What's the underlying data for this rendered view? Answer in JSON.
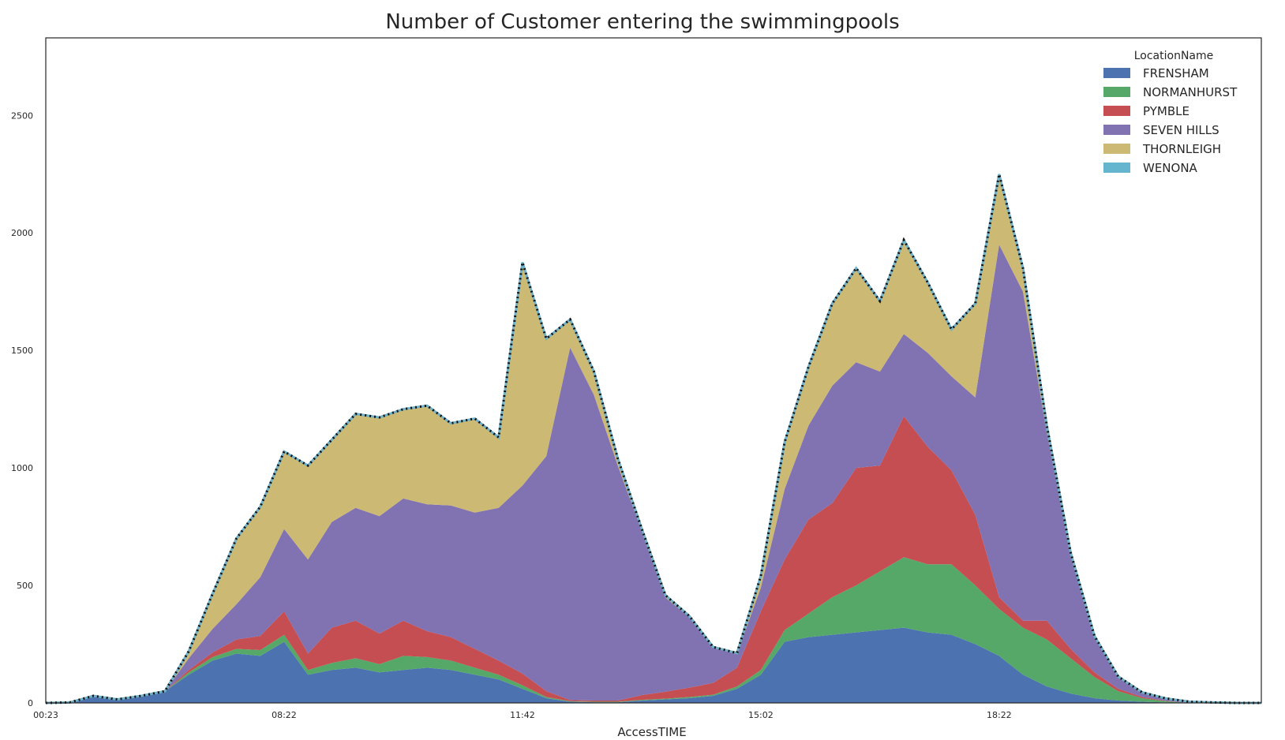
{
  "chart_data": {
    "type": "area",
    "stacked": true,
    "title": "Number of Customer entering the swimmingpools",
    "xlabel": "AccessTIME",
    "ylabel": "",
    "ylim": [
      0,
      2830
    ],
    "yticks": [
      0,
      500,
      1000,
      1500,
      2000,
      2500
    ],
    "xticks": [
      "00:23",
      "08:22",
      "11:42",
      "15:02",
      "18:22"
    ],
    "grid": false,
    "total_line": {
      "style": "dotted",
      "colors": [
        "#6fb1c8",
        "#111111"
      ]
    },
    "legend": {
      "title": "LocationName",
      "placement": "top-right"
    },
    "x": [
      "00:23",
      "01:00",
      "02:00",
      "03:00",
      "04:00",
      "05:00",
      "06:00",
      "07:00",
      "07:30",
      "08:00",
      "08:22",
      "08:40",
      "09:00",
      "09:20",
      "09:40",
      "10:00",
      "10:20",
      "10:40",
      "11:00",
      "11:20",
      "11:42",
      "12:00",
      "12:20",
      "12:40",
      "13:00",
      "13:20",
      "13:40",
      "14:00",
      "14:20",
      "14:40",
      "15:02",
      "15:20",
      "15:40",
      "16:00",
      "16:20",
      "16:40",
      "17:00",
      "17:20",
      "17:40",
      "18:00",
      "18:22",
      "18:40",
      "19:00",
      "19:20",
      "19:40",
      "20:00",
      "20:20",
      "20:40",
      "21:00",
      "21:30",
      "22:00",
      "22:30"
    ],
    "series": [
      {
        "name": "FRENSHAM",
        "color": "#4c72b0",
        "values": [
          0,
          2,
          30,
          15,
          30,
          50,
          120,
          180,
          210,
          200,
          260,
          120,
          140,
          150,
          130,
          140,
          150,
          140,
          120,
          100,
          60,
          20,
          5,
          3,
          3,
          10,
          15,
          20,
          30,
          60,
          120,
          260,
          280,
          290,
          300,
          310,
          320,
          300,
          290,
          250,
          200,
          120,
          70,
          40,
          20,
          10,
          5,
          2,
          0,
          0,
          0,
          0
        ]
      },
      {
        "name": "NORMANHURST",
        "color": "#55a868",
        "values": [
          0,
          0,
          0,
          0,
          0,
          0,
          10,
          15,
          20,
          25,
          30,
          20,
          30,
          40,
          35,
          60,
          45,
          40,
          30,
          20,
          15,
          5,
          2,
          2,
          2,
          3,
          3,
          5,
          5,
          10,
          20,
          50,
          100,
          160,
          200,
          250,
          300,
          290,
          300,
          250,
          200,
          200,
          200,
          150,
          90,
          40,
          15,
          5,
          0,
          0,
          0,
          0
        ]
      },
      {
        "name": "PYMBLE",
        "color": "#c44e52",
        "values": [
          0,
          0,
          0,
          0,
          0,
          0,
          10,
          20,
          40,
          60,
          100,
          70,
          150,
          160,
          130,
          150,
          110,
          100,
          80,
          60,
          50,
          25,
          5,
          5,
          5,
          20,
          30,
          40,
          50,
          80,
          250,
          300,
          400,
          400,
          500,
          450,
          600,
          500,
          400,
          300,
          50,
          30,
          80,
          40,
          20,
          10,
          5,
          2,
          0,
          0,
          0,
          0
        ]
      },
      {
        "name": "SEVEN HILLS",
        "color": "#8172b2",
        "values": [
          0,
          0,
          0,
          0,
          0,
          0,
          50,
          100,
          150,
          250,
          350,
          400,
          450,
          480,
          500,
          520,
          540,
          560,
          580,
          650,
          800,
          1000,
          1500,
          1300,
          1000,
          700,
          400,
          300,
          150,
          60,
          100,
          300,
          400,
          500,
          450,
          400,
          350,
          400,
          400,
          500,
          1500,
          1400,
          800,
          400,
          150,
          50,
          20,
          10,
          5,
          2,
          0,
          0
        ]
      },
      {
        "name": "THORNLEIGH",
        "color": "#ccb974",
        "values": [
          0,
          0,
          0,
          0,
          0,
          0,
          30,
          150,
          280,
          300,
          330,
          400,
          350,
          400,
          420,
          380,
          420,
          350,
          400,
          300,
          950,
          500,
          120,
          100,
          30,
          10,
          10,
          5,
          3,
          2,
          50,
          200,
          250,
          350,
          400,
          300,
          400,
          300,
          200,
          400,
          300,
          100,
          30,
          10,
          5,
          2,
          0,
          0,
          0,
          0,
          0,
          0
        ]
      },
      {
        "name": "WENONA",
        "color": "#64b5cd",
        "values": [
          0,
          0,
          0,
          0,
          0,
          0,
          0,
          0,
          0,
          0,
          0,
          0,
          0,
          0,
          0,
          0,
          0,
          0,
          0,
          0,
          0,
          0,
          0,
          0,
          0,
          0,
          0,
          0,
          0,
          0,
          0,
          0,
          0,
          0,
          0,
          0,
          0,
          0,
          0,
          0,
          0,
          0,
          0,
          0,
          0,
          0,
          0,
          0,
          0,
          0,
          0,
          0
        ]
      }
    ]
  }
}
